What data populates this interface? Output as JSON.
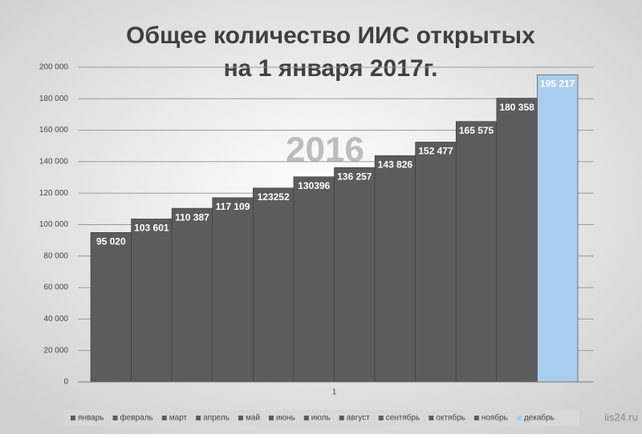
{
  "chart_data": {
    "type": "bar",
    "title": [
      "Общее количество ИИС открытых",
      "на 1 января 2017г."
    ],
    "annotation": "2016",
    "watermark": "iis24.ru",
    "categories": [
      "1"
    ],
    "ylim": [
      0,
      200000
    ],
    "yticks": [
      0,
      {
        "value": 20000,
        "label": "20 000"
      },
      {
        "value": 40000,
        "label": "40 000"
      },
      {
        "value": 60000,
        "label": "60 000"
      },
      {
        "value": 80000,
        "label": "80 000"
      },
      {
        "value": 100000,
        "label": "100 000"
      },
      {
        "value": 120000,
        "label": "120 000"
      },
      {
        "value": 140000,
        "label": "140 000"
      },
      {
        "value": 160000,
        "label": "160 000"
      },
      {
        "value": 180000,
        "label": "180 000"
      },
      {
        "value": 200000,
        "label": "200 000"
      }
    ],
    "grid": true,
    "legend": "bottom",
    "series": [
      {
        "name": "январь",
        "color": "#5c5c5c",
        "values": [
          95020
        ],
        "value_labels": [
          "95 020"
        ]
      },
      {
        "name": "февраль",
        "color": "#5c5c5c",
        "values": [
          103601
        ],
        "value_labels": [
          "103 601"
        ]
      },
      {
        "name": "март",
        "color": "#5c5c5c",
        "values": [
          110387
        ],
        "value_labels": [
          "110 387"
        ]
      },
      {
        "name": "апрель",
        "color": "#5c5c5c",
        "values": [
          117109
        ],
        "value_labels": [
          "117 109"
        ]
      },
      {
        "name": "май",
        "color": "#5c5c5c",
        "values": [
          123252
        ],
        "value_labels": [
          "123252"
        ]
      },
      {
        "name": "июнь",
        "color": "#5c5c5c",
        "values": [
          130396
        ],
        "value_labels": [
          "130396"
        ]
      },
      {
        "name": "июль",
        "color": "#5c5c5c",
        "values": [
          136257
        ],
        "value_labels": [
          "136 257"
        ]
      },
      {
        "name": "август",
        "color": "#5c5c5c",
        "values": [
          143826
        ],
        "value_labels": [
          "143 826"
        ]
      },
      {
        "name": "сентябрь",
        "color": "#5c5c5c",
        "values": [
          152477
        ],
        "value_labels": [
          "152 477"
        ]
      },
      {
        "name": "октябрь",
        "color": "#5c5c5c",
        "values": [
          165575
        ],
        "value_labels": [
          "165 575"
        ]
      },
      {
        "name": "ноябрь",
        "color": "#5c5c5c",
        "values": [
          180358
        ],
        "value_labels": [
          "180 358"
        ]
      },
      {
        "name": "декабрь",
        "color": "#a9cdee",
        "values": [
          195217
        ],
        "value_labels": [
          "195 217"
        ]
      }
    ]
  }
}
